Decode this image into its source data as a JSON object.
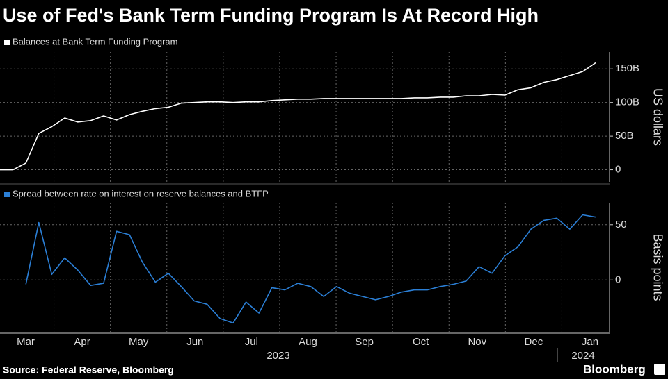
{
  "title": "Use of Fed's Bank Term Funding Program Is At Record High",
  "source": "Source: Federal Reserve, Bloomberg",
  "brand": "Bloomberg",
  "x_axis": {
    "months": [
      "Mar",
      "Apr",
      "May",
      "Jun",
      "Jul",
      "Aug",
      "Sep",
      "Oct",
      "Nov",
      "Dec",
      "Jan"
    ],
    "years": [
      "2023",
      "2024"
    ]
  },
  "chart_data": [
    {
      "type": "line",
      "y_label": "US dollars",
      "ylim": [
        -18,
        175
      ],
      "yticks": [
        0,
        {
          "value": 50,
          "label": "50B"
        },
        {
          "value": 100,
          "label": "100B"
        },
        {
          "value": 150,
          "label": "150B"
        }
      ],
      "grid": true,
      "series": [
        {
          "name": "Balances at Bank Term Funding Program",
          "color": "#ffffff",
          "values": [
            0,
            0,
            10,
            54,
            64,
            77,
            71,
            73,
            80,
            74,
            82,
            87,
            91,
            93,
            99,
            100,
            101,
            101,
            100,
            101,
            101,
            103,
            104,
            105,
            105,
            106,
            106,
            106,
            106,
            106,
            106,
            106,
            107,
            107,
            108,
            108,
            110,
            110,
            112,
            111,
            119,
            122,
            130,
            134,
            140,
            146,
            159
          ]
        }
      ]
    },
    {
      "type": "line",
      "y_label": "Basis points",
      "ylim": [
        -47,
        70
      ],
      "yticks": [
        0,
        50
      ],
      "grid": true,
      "series": [
        {
          "name": "Spread between rate on interest on reserve balances and BTFP",
          "color": "#2b7fd6",
          "values": [
            null,
            null,
            -4,
            52,
            5,
            20,
            9,
            -5,
            -3,
            44,
            41,
            16,
            -2,
            6,
            -6,
            -19,
            -22,
            -35,
            -39,
            -20,
            -30,
            -7,
            -9,
            -3,
            -6,
            -15,
            -6,
            -12,
            -15,
            -18,
            -15,
            -11,
            -9,
            -9,
            -6,
            -4,
            -1,
            12,
            6,
            22,
            30,
            46,
            54,
            56,
            46,
            59,
            57
          ]
        }
      ]
    }
  ]
}
